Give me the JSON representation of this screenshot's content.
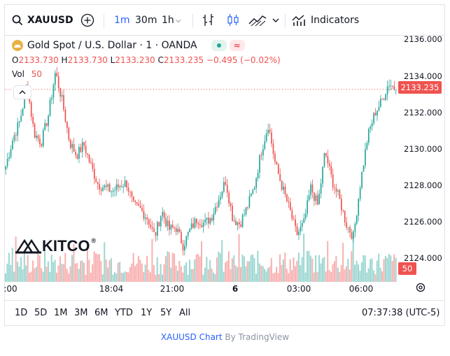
{
  "toolbar": {
    "symbol": "XAUUSD",
    "timeframes": [
      "1m",
      "30m",
      "1h"
    ],
    "active_timeframe": "1m",
    "indicators_label": "Indicators"
  },
  "legend": {
    "title": "Gold Spot / U.S. Dollar · 1 · OANDA",
    "o_label": "O",
    "o_value": "2133.730",
    "h_label": "H",
    "h_value": "2133.730",
    "l_label": "L",
    "l_value": "2133.230",
    "c_label": "C",
    "c_value": "2133.235",
    "change": "−0.495 (−0.02%)",
    "vol_label": "Vol",
    "vol_value": "50"
  },
  "price_tag": "2133.235",
  "volume_tag": "50",
  "watermark": "KITCO",
  "range_buttons": [
    "1D",
    "5D",
    "1M",
    "3M",
    "6M",
    "YTD",
    "1Y",
    "5Y",
    "All"
  ],
  "clock": "07:37:38 (UTC-5)",
  "credit": {
    "link": "XAUUSD Chart",
    "by": "By TradingView"
  },
  "colors": {
    "up": "#26a69a",
    "down": "#ef5350",
    "accent": "#2962ff"
  },
  "chart_data": {
    "type": "candlestick",
    "title": "Gold Spot / U.S. Dollar · 1 · OANDA",
    "y_tick_labels": [
      "2124.000",
      "2126.000",
      "2128.000",
      "2130.000",
      "2132.000",
      "2134.000",
      "2136.000"
    ],
    "x_tick_labels": [
      ":00",
      "18:04",
      "21:00",
      "6",
      "03:00",
      "06:00"
    ],
    "ylim": [
      2122.6,
      2136.2
    ],
    "last_close": 2133.235,
    "close_path": [
      2129.0,
      2130.5,
      2131.5,
      2133.5,
      2130.8,
      2130.3,
      2131.8,
      2134.2,
      2132.5,
      2130.3,
      2129.6,
      2130.2,
      2129.0,
      2128.0,
      2127.8,
      2127.6,
      2127.9,
      2128.1,
      2126.8,
      2126.6,
      2126.1,
      2125.1,
      2126.5,
      2125.5,
      2125.6,
      2124.6,
      2125.5,
      2126.1,
      2125.8,
      2126.2,
      2127.2,
      2128.2,
      2126.1,
      2125.8,
      2126.7,
      2127.8,
      2129.8,
      2131.3,
      2129.1,
      2127.8,
      2126.6,
      2125.2,
      2125.8,
      2127.8,
      2126.8,
      2129.8,
      2128.2,
      2127.2,
      2125.8,
      2125.1,
      2128.1,
      2130.6,
      2131.9,
      2132.6,
      2133.6,
      2133.235
    ],
    "volume_range": [
      0,
      50
    ]
  }
}
